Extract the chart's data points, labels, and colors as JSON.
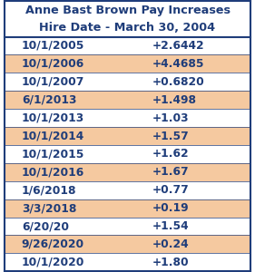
{
  "title_line1": "Anne Bast Brown Pay Increases",
  "title_line2": "Hire Date - March 30, 2004",
  "rows": [
    {
      "date": "10/1/2005",
      "value": "+2.6442"
    },
    {
      "date": "10/1/2006",
      "value": "+4.4685"
    },
    {
      "date": "10/1/2007",
      "value": "+0.6820"
    },
    {
      "date": "6/1/2013",
      "value": "+1.498"
    },
    {
      "date": "10/1/2013",
      "value": "+1.03"
    },
    {
      "date": "10/1/2014",
      "value": "+1.57"
    },
    {
      "date": "10/1/2015",
      "value": "+1.62"
    },
    {
      "date": "10/1/2016",
      "value": "+1.67"
    },
    {
      "date": "1/6/2018",
      "value": "+0.77"
    },
    {
      "date": "3/3/2018",
      "value": "+0.19"
    },
    {
      "date": "6/20/20",
      "value": "+1.54"
    },
    {
      "date": "9/26/2020",
      "value": "+0.24"
    },
    {
      "date": "10/1/2020",
      "value": "+1.80"
    }
  ],
  "row_colors": [
    "#ffffff",
    "#f5c9a0",
    "#ffffff",
    "#f5c9a0",
    "#ffffff",
    "#f5c9a0",
    "#ffffff",
    "#f5c9a0",
    "#ffffff",
    "#f5c9a0",
    "#ffffff",
    "#f5c9a0",
    "#ffffff"
  ],
  "header_bg": "#ffffff",
  "text_color": "#1f3d7a",
  "border_color": "#1f3d7a",
  "title_fontsize": 9.2,
  "row_fontsize": 8.8
}
